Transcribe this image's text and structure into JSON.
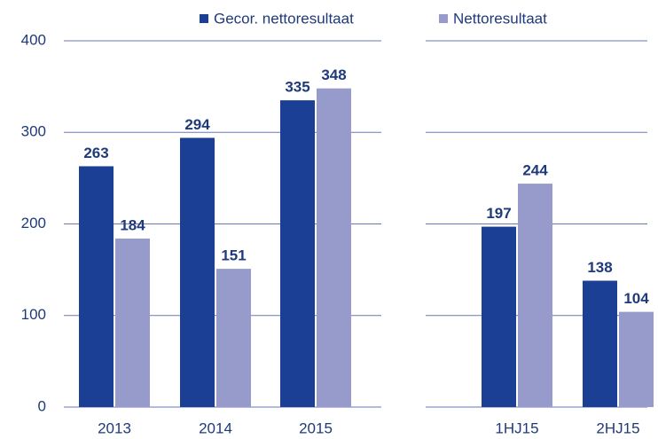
{
  "chart_data": {
    "type": "bar",
    "categories": [
      "2013",
      "2014",
      "2015",
      "1HJ15",
      "2HJ15"
    ],
    "series": [
      {
        "name": "Gecor. nettoresultaat",
        "color": "#1b3f94",
        "values": [
          263,
          294,
          335,
          197,
          138
        ]
      },
      {
        "name": "Nettoresultaat",
        "color": "#969bcb",
        "values": [
          184,
          151,
          348,
          244,
          104
        ]
      }
    ],
    "ylim": [
      0,
      400
    ],
    "yticks": [
      0,
      100,
      200,
      300,
      400
    ],
    "grid": true
  }
}
